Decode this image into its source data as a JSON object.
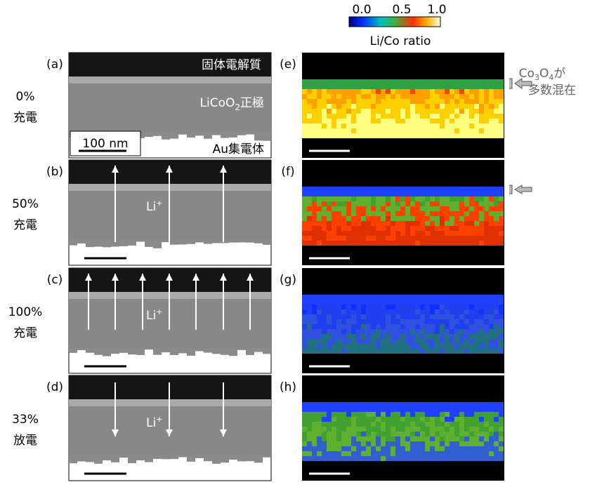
{
  "colorbar": {
    "ticks": [
      "0.0",
      "0.5",
      "1.0"
    ],
    "label": "Li/Co ratio"
  },
  "rows": [
    {
      "panel": "(a)",
      "map_panel": "(e)",
      "state": [
        "0%",
        "充電"
      ]
    },
    {
      "panel": "(b)",
      "map_panel": "(f)",
      "state": [
        "50%",
        "充電"
      ]
    },
    {
      "panel": "(c)",
      "map_panel": "(g)",
      "state": [
        "100%",
        "充電"
      ]
    },
    {
      "panel": "(d)",
      "map_panel": "(h)",
      "state": [
        "33%",
        "放電"
      ]
    }
  ],
  "labels": {
    "electrolyte": "固体電解質",
    "cathode": [
      "LiCoO",
      "2",
      "正極"
    ],
    "collector": "Au集電体",
    "scale": "100 nm",
    "li_ion": [
      "Li",
      "+"
    ]
  },
  "annotation": [
    "Co",
    "3",
    "O",
    "4",
    "が",
    "多数混在"
  ]
}
